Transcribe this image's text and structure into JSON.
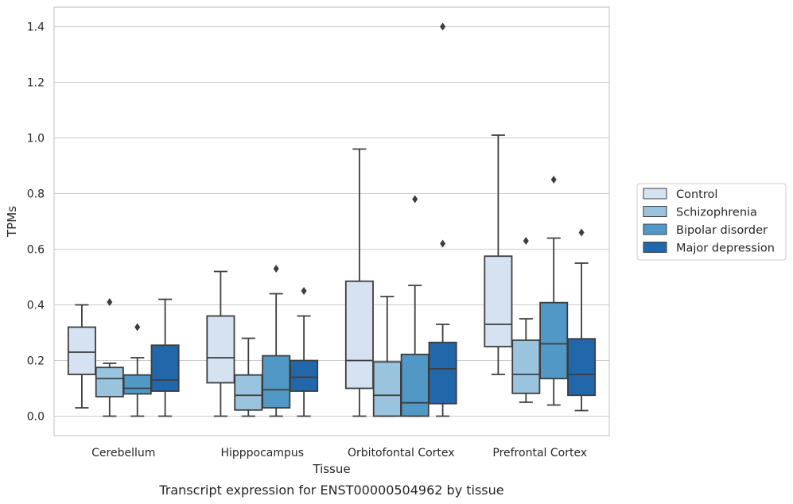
{
  "caption": "Transcript expression for ENST00000504962 by tissue",
  "chart_data": {
    "type": "box",
    "xlabel": "Tissue",
    "ylabel": "TPMs",
    "ylim": [
      -0.07,
      1.47
    ],
    "yticks": [
      0.0,
      0.2,
      0.4,
      0.6,
      0.8,
      1.0,
      1.2,
      1.4
    ],
    "ytick_labels": [
      "0.0",
      "0.2",
      "0.4",
      "0.6",
      "0.8",
      "1.0",
      "1.2",
      "1.4"
    ],
    "grid": "horizontal",
    "legend_position": "right-center",
    "categories": [
      "Cerebellum",
      "Hipppocampus",
      "Orbitofontal Cortex",
      "Prefrontal Cortex"
    ],
    "series": [
      {
        "name": "Control",
        "color": "#d4e2f2",
        "boxes": [
          {
            "whislo": 0.03,
            "q1": 0.15,
            "med": 0.23,
            "q3": 0.32,
            "whishi": 0.4,
            "fliers": []
          },
          {
            "whislo": 0.0,
            "q1": 0.12,
            "med": 0.21,
            "q3": 0.36,
            "whishi": 0.52,
            "fliers": []
          },
          {
            "whislo": 0.0,
            "q1": 0.1,
            "med": 0.2,
            "q3": 0.485,
            "whishi": 0.96,
            "fliers": []
          },
          {
            "whislo": 0.15,
            "q1": 0.25,
            "med": 0.33,
            "q3": 0.575,
            "whishi": 1.01,
            "fliers": []
          }
        ]
      },
      {
        "name": "Schizophrenia",
        "color": "#9ac4de",
        "boxes": [
          {
            "whislo": 0.0,
            "q1": 0.07,
            "med": 0.135,
            "q3": 0.175,
            "whishi": 0.19,
            "fliers": [
              0.41
            ]
          },
          {
            "whislo": 0.0,
            "q1": 0.022,
            "med": 0.075,
            "q3": 0.148,
            "whishi": 0.28,
            "fliers": []
          },
          {
            "whislo": 0.0,
            "q1": 0.0,
            "med": 0.075,
            "q3": 0.195,
            "whishi": 0.43,
            "fliers": []
          },
          {
            "whislo": 0.05,
            "q1": 0.082,
            "med": 0.15,
            "q3": 0.273,
            "whishi": 0.35,
            "fliers": [
              0.63
            ]
          }
        ]
      },
      {
        "name": "Bipolar disorder",
        "color": "#5198c6",
        "boxes": [
          {
            "whislo": 0.0,
            "q1": 0.08,
            "med": 0.1,
            "q3": 0.148,
            "whishi": 0.21,
            "fliers": [
              0.32
            ]
          },
          {
            "whislo": 0.0,
            "q1": 0.03,
            "med": 0.095,
            "q3": 0.217,
            "whishi": 0.44,
            "fliers": [
              0.53
            ]
          },
          {
            "whislo": 0.0,
            "q1": 0.0,
            "med": 0.048,
            "q3": 0.222,
            "whishi": 0.47,
            "fliers": [
              0.78
            ]
          },
          {
            "whislo": 0.04,
            "q1": 0.135,
            "med": 0.26,
            "q3": 0.408,
            "whishi": 0.64,
            "fliers": [
              0.85
            ]
          }
        ]
      },
      {
        "name": "Major depression",
        "color": "#2367ab",
        "boxes": [
          {
            "whislo": 0.0,
            "q1": 0.09,
            "med": 0.13,
            "q3": 0.255,
            "whishi": 0.42,
            "fliers": []
          },
          {
            "whislo": 0.0,
            "q1": 0.09,
            "med": 0.14,
            "q3": 0.2,
            "whishi": 0.36,
            "fliers": [
              0.45
            ]
          },
          {
            "whislo": 0.0,
            "q1": 0.045,
            "med": 0.17,
            "q3": 0.265,
            "whishi": 0.33,
            "fliers": [
              0.62,
              1.4
            ]
          },
          {
            "whislo": 0.02,
            "q1": 0.075,
            "med": 0.15,
            "q3": 0.278,
            "whishi": 0.55,
            "fliers": [
              0.66
            ]
          }
        ]
      }
    ]
  }
}
